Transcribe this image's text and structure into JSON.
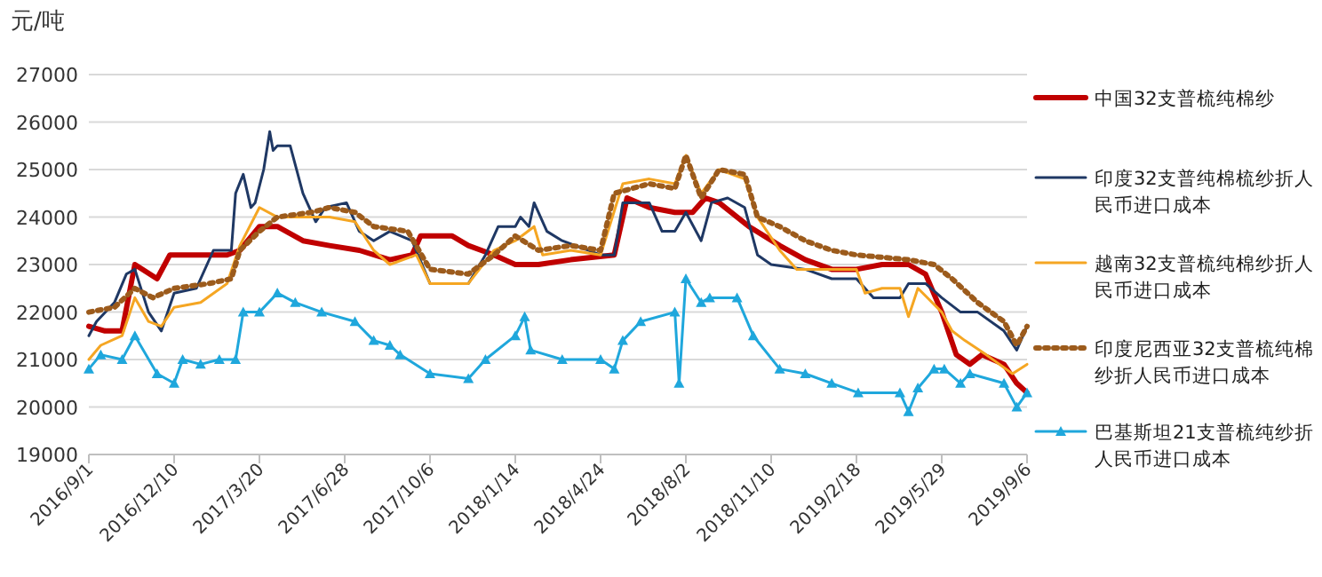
{
  "chart_data": {
    "type": "line",
    "ylabel": "元/吨",
    "xlim": [
      "2016-09-01",
      "2019-09-06"
    ],
    "xticks": [
      {
        "value": "2016-09-01",
        "label": "2016/9/1"
      },
      {
        "value": "2016-12-10",
        "label": "2016/12/10"
      },
      {
        "value": "2017-03-20",
        "label": "2017/3/20"
      },
      {
        "value": "2017-06-28",
        "label": "2017/6/28"
      },
      {
        "value": "2017-10-06",
        "label": "2017/10/6"
      },
      {
        "value": "2018-01-14",
        "label": "2018/1/14"
      },
      {
        "value": "2018-04-24",
        "label": "2018/4/24"
      },
      {
        "value": "2018-08-02",
        "label": "2018/8/2"
      },
      {
        "value": "2018-11-10",
        "label": "2018/11/10"
      },
      {
        "value": "2019-02-18",
        "label": "2019/2/18"
      },
      {
        "value": "2019-05-29",
        "label": "2019/5/29"
      },
      {
        "value": "2019-09-06",
        "label": "2019/9/6"
      }
    ],
    "ylim": [
      19000,
      27000
    ],
    "yticks": [
      19000,
      20000,
      21000,
      22000,
      23000,
      24000,
      25000,
      26000,
      27000
    ],
    "grid": "y",
    "legend": "right",
    "series": [
      {
        "name": "中国32支普梳纯棉纱",
        "color": "#c00000",
        "line_style": "solid",
        "marker": "none",
        "x": [
          "2016-09-01",
          "2016-09-20",
          "2016-10-10",
          "2016-10-25",
          "2016-11-20",
          "2016-12-05",
          "2017-01-10",
          "2017-02-10",
          "2017-02-25",
          "2017-03-20",
          "2017-04-10",
          "2017-05-10",
          "2017-06-10",
          "2017-07-15",
          "2017-08-20",
          "2017-09-15",
          "2017-09-25",
          "2017-11-01",
          "2017-11-20",
          "2017-12-20",
          "2018-01-14",
          "2018-02-10",
          "2018-03-20",
          "2018-05-10",
          "2018-05-25",
          "2018-06-20",
          "2018-07-20",
          "2018-08-10",
          "2018-08-25",
          "2018-09-10",
          "2018-10-15",
          "2018-11-20",
          "2018-12-20",
          "2019-01-20",
          "2019-02-18",
          "2019-03-20",
          "2019-04-20",
          "2019-05-10",
          "2019-05-29",
          "2019-06-15",
          "2019-07-01",
          "2019-07-15",
          "2019-08-10",
          "2019-08-25",
          "2019-09-06"
        ],
        "values": [
          21700,
          21600,
          21600,
          23000,
          22700,
          23200,
          23200,
          23200,
          23300,
          23800,
          23800,
          23500,
          23400,
          23300,
          23100,
          23200,
          23600,
          23600,
          23400,
          23200,
          23000,
          23000,
          23100,
          23200,
          24400,
          24200,
          24100,
          24100,
          24400,
          24300,
          23800,
          23400,
          23100,
          22900,
          22900,
          23000,
          23000,
          22800,
          22000,
          21100,
          20900,
          21100,
          20900,
          20500,
          20300
        ]
      },
      {
        "name": "印度32支普纯棉梳纱折人民币进口成本",
        "color": "#1f3864",
        "line_style": "solid",
        "marker": "none",
        "x": [
          "2016-09-01",
          "2016-09-10",
          "2016-10-01",
          "2016-10-15",
          "2016-10-25",
          "2016-11-10",
          "2016-11-25",
          "2016-12-10",
          "2017-01-05",
          "2017-01-25",
          "2017-02-15",
          "2017-02-20",
          "2017-03-01",
          "2017-03-10",
          "2017-03-15",
          "2017-03-25",
          "2017-04-01",
          "2017-04-05",
          "2017-04-10",
          "2017-04-25",
          "2017-05-10",
          "2017-05-25",
          "2017-06-05",
          "2017-06-30",
          "2017-07-15",
          "2017-08-01",
          "2017-08-20",
          "2017-09-15",
          "2017-10-06",
          "2017-11-20",
          "2017-12-10",
          "2017-12-25",
          "2018-01-14",
          "2018-01-20",
          "2018-01-30",
          "2018-02-05",
          "2018-02-20",
          "2018-03-10",
          "2018-04-24",
          "2018-05-10",
          "2018-05-20",
          "2018-06-20",
          "2018-07-05",
          "2018-07-20",
          "2018-08-02",
          "2018-08-20",
          "2018-09-01",
          "2018-09-20",
          "2018-10-10",
          "2018-10-25",
          "2018-11-10",
          "2018-12-20",
          "2019-01-20",
          "2019-02-18",
          "2019-03-10",
          "2019-04-10",
          "2019-04-20",
          "2019-05-10",
          "2019-05-29",
          "2019-06-20",
          "2019-07-10",
          "2019-08-10",
          "2019-08-25",
          "2019-09-06"
        ],
        "values": [
          21500,
          21800,
          22200,
          22800,
          22900,
          22000,
          21600,
          22400,
          22500,
          23300,
          23300,
          24500,
          24900,
          24200,
          24300,
          25000,
          25800,
          25400,
          25500,
          25500,
          24500,
          23900,
          24200,
          24300,
          23700,
          23500,
          23700,
          23500,
          22600,
          22600,
          23200,
          23800,
          23800,
          24000,
          23800,
          24300,
          23700,
          23500,
          23200,
          23200,
          24300,
          24300,
          23700,
          23700,
          24100,
          23500,
          24300,
          24400,
          24200,
          23200,
          23000,
          22900,
          22700,
          22700,
          22300,
          22300,
          22600,
          22600,
          22300,
          22000,
          22000,
          21600,
          21200,
          21700
        ]
      },
      {
        "name": "越南32支普梳纯棉纱折人民币进口成本",
        "color": "#f5a623",
        "line_style": "solid",
        "marker": "none",
        "x": [
          "2016-09-01",
          "2016-09-15",
          "2016-10-10",
          "2016-10-25",
          "2016-11-10",
          "2016-11-25",
          "2016-12-10",
          "2017-01-10",
          "2017-02-10",
          "2017-02-25",
          "2017-03-20",
          "2017-04-10",
          "2017-05-20",
          "2017-06-10",
          "2017-07-10",
          "2017-08-01",
          "2017-08-20",
          "2017-09-20",
          "2017-10-06",
          "2017-11-20",
          "2017-12-20",
          "2018-01-14",
          "2018-02-05",
          "2018-02-15",
          "2018-03-20",
          "2018-04-24",
          "2018-05-20",
          "2018-06-20",
          "2018-07-20",
          "2018-08-02",
          "2018-08-20",
          "2018-09-10",
          "2018-10-10",
          "2018-10-25",
          "2018-11-20",
          "2018-12-10",
          "2019-01-20",
          "2019-02-18",
          "2019-02-28",
          "2019-03-20",
          "2019-04-10",
          "2019-04-20",
          "2019-05-01",
          "2019-05-29",
          "2019-06-10",
          "2019-06-25",
          "2019-07-20",
          "2019-08-20",
          "2019-09-06"
        ],
        "values": [
          21000,
          21300,
          21500,
          22300,
          21800,
          21700,
          22100,
          22200,
          22600,
          23400,
          24200,
          24000,
          24000,
          24000,
          23900,
          23300,
          23000,
          23200,
          22600,
          22600,
          23300,
          23500,
          23800,
          23200,
          23300,
          23200,
          24700,
          24800,
          24700,
          25300,
          24500,
          25000,
          24800,
          24000,
          23300,
          22900,
          22900,
          22900,
          22400,
          22500,
          22500,
          21900,
          22500,
          22000,
          21600,
          21400,
          21100,
          20700,
          20900
        ]
      },
      {
        "name": "印度尼西亚32支普梳纯棉纱折人民币进口成本",
        "color": "#9c5b1c",
        "line_style": "dotted",
        "marker": "none",
        "x": [
          "2016-09-01",
          "2016-10-01",
          "2016-10-25",
          "2016-11-15",
          "2016-12-10",
          "2017-01-20",
          "2017-02-15",
          "2017-02-25",
          "2017-03-20",
          "2017-04-10",
          "2017-05-20",
          "2017-06-10",
          "2017-07-10",
          "2017-08-01",
          "2017-09-10",
          "2017-10-06",
          "2017-11-20",
          "2017-12-20",
          "2018-01-14",
          "2018-02-10",
          "2018-03-20",
          "2018-04-24",
          "2018-05-10",
          "2018-06-20",
          "2018-07-20",
          "2018-08-02",
          "2018-08-20",
          "2018-09-10",
          "2018-10-10",
          "2018-10-25",
          "2018-11-20",
          "2018-12-20",
          "2019-01-20",
          "2019-02-18",
          "2019-04-20",
          "2019-05-20",
          "2019-06-10",
          "2019-07-10",
          "2019-08-10",
          "2019-08-25",
          "2019-09-06"
        ],
        "values": [
          22000,
          22100,
          22500,
          22300,
          22500,
          22600,
          22700,
          23300,
          23700,
          24000,
          24100,
          24200,
          24100,
          23800,
          23700,
          22900,
          22800,
          23200,
          23600,
          23300,
          23400,
          23300,
          24500,
          24700,
          24600,
          25300,
          24400,
          25000,
          24900,
          24000,
          23800,
          23500,
          23300,
          23200,
          23100,
          23000,
          22700,
          22200,
          21800,
          21300,
          21700
        ]
      },
      {
        "name": "巴基斯坦21支普梳纯纱折人民币进口成本",
        "color": "#1fa7dc",
        "line_style": "solid",
        "marker": "triangle",
        "x": [
          "2016-09-01",
          "2016-09-15",
          "2016-10-10",
          "2016-10-25",
          "2016-11-20",
          "2016-12-10",
          "2016-12-20",
          "2017-01-10",
          "2017-02-01",
          "2017-02-20",
          "2017-03-01",
          "2017-03-20",
          "2017-04-10",
          "2017-05-01",
          "2017-06-01",
          "2017-07-10",
          "2017-08-01",
          "2017-08-20",
          "2017-09-01",
          "2017-10-06",
          "2017-11-20",
          "2017-12-10",
          "2018-01-14",
          "2018-01-25",
          "2018-02-01",
          "2018-03-10",
          "2018-04-24",
          "2018-05-10",
          "2018-05-20",
          "2018-06-10",
          "2018-07-20",
          "2018-07-25",
          "2018-08-02",
          "2018-08-20",
          "2018-08-30",
          "2018-10-01",
          "2018-10-20",
          "2018-11-20",
          "2018-12-20",
          "2019-01-20",
          "2019-02-20",
          "2019-04-10",
          "2019-04-20",
          "2019-05-01",
          "2019-05-20",
          "2019-06-01",
          "2019-06-20",
          "2019-07-01",
          "2019-08-10",
          "2019-08-25",
          "2019-09-06"
        ],
        "values": [
          20800,
          21100,
          21000,
          21500,
          20700,
          20500,
          21000,
          20900,
          21000,
          21000,
          22000,
          22000,
          22400,
          22200,
          22000,
          21800,
          21400,
          21300,
          21100,
          20700,
          20600,
          21000,
          21500,
          21900,
          21200,
          21000,
          21000,
          20800,
          21400,
          21800,
          22000,
          20500,
          22700,
          22200,
          22300,
          22300,
          21500,
          20800,
          20700,
          20500,
          20300,
          20300,
          19900,
          20400,
          20800,
          20800,
          20500,
          20700,
          20500,
          20000,
          20300
        ]
      }
    ]
  }
}
